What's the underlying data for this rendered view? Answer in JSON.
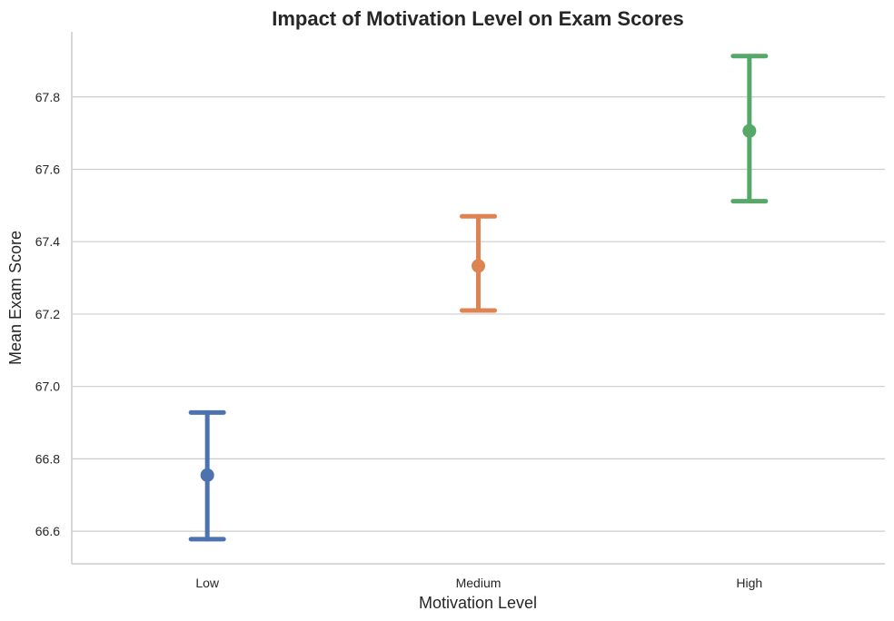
{
  "chart_data": {
    "type": "scatter",
    "title": "Impact of Motivation Level on Exam Scores",
    "xlabel": "Motivation Level",
    "ylabel": "Mean Exam Score",
    "categories": [
      "Low",
      "Medium",
      "High"
    ],
    "values": [
      66.755,
      67.333,
      67.706
    ],
    "ci_lower": [
      66.578,
      67.21,
      67.512
    ],
    "ci_upper": [
      66.928,
      67.47,
      67.913
    ],
    "colors": [
      "#4c72b0",
      "#dd8452",
      "#55a868"
    ],
    "ylim": [
      66.51,
      67.98
    ],
    "yticks": [
      "66.6",
      "66.8",
      "67.0",
      "67.2",
      "67.4",
      "67.6",
      "67.8"
    ],
    "grid": "horizontal",
    "legend": "none"
  }
}
